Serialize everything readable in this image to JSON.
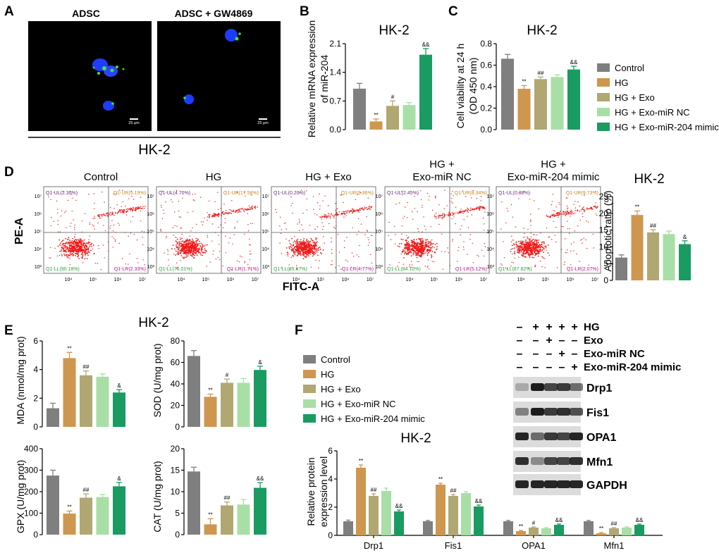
{
  "colors": {
    "control": "#7f7f7f",
    "hg": "#cf9650",
    "hg_exo": "#b0a772",
    "hg_exo_nc": "#a8dfa6",
    "hg_exo_mimic": "#1a9b62",
    "dots": "#ee1b1b",
    "quad_ul": "#6a2d8a",
    "quad_ur": "#c8881e",
    "quad_ll": "#2aa33a",
    "quad_lr": "#b5178a"
  },
  "groups": [
    "Control",
    "HG",
    "HG + Exo",
    "HG + Exo-miR NC",
    "HG + Exo-miR-204 mimic"
  ],
  "panelA": {
    "letter": "A",
    "labels": [
      "ADSC",
      "ADSC + GW4869"
    ],
    "scalebar": "25 μm",
    "cell_line": "HK-2"
  },
  "panelB": {
    "letter": "B",
    "chart_data": {
      "type": "bar",
      "title": "HK-2",
      "ylabel": "Relative mRNA expression of miR-204",
      "ylabel_lines": [
        "Relative mRNA expression",
        "of miR-204"
      ],
      "categories": [
        "Control",
        "HG",
        "HG + Exo",
        "HG + Exo-miR NC",
        "HG + Exo-miR-204 mimic"
      ],
      "values": [
        1.0,
        0.2,
        0.58,
        0.6,
        1.83
      ],
      "errors": [
        0.13,
        0.06,
        0.12,
        0.06,
        0.15
      ],
      "ylim": [
        0,
        2.1
      ],
      "yticks": [
        "0.0",
        "0.7",
        "1.4",
        "2.1"
      ],
      "yticks_val": [
        0,
        0.7,
        1.4,
        2.1
      ],
      "marks": [
        "",
        "**",
        "#",
        "",
        "&&"
      ]
    }
  },
  "panelC": {
    "letter": "C",
    "chart_data": {
      "type": "bar",
      "title": "HK-2",
      "ylabel": "Cell viability at 24 h (OD 450 nm)",
      "ylabel_lines": [
        "Cell viability at 24 h",
        "(OD 450 nm)"
      ],
      "categories": [
        "Control",
        "HG",
        "HG + Exo",
        "HG + Exo-miR NC",
        "HG + Exo-miR-204 mimic"
      ],
      "values": [
        0.66,
        0.38,
        0.47,
        0.49,
        0.56
      ],
      "errors": [
        0.04,
        0.03,
        0.02,
        0.02,
        0.03
      ],
      "ylim": [
        0,
        0.8
      ],
      "yticks": [
        "0.0",
        "0.2",
        "0.4",
        "0.6",
        "0.8"
      ],
      "yticks_val": [
        0,
        0.2,
        0.4,
        0.6,
        0.8
      ],
      "marks": [
        "",
        "**",
        "##",
        "",
        "&&"
      ]
    }
  },
  "legendTop": [
    "Control",
    "HG",
    "HG + Exo",
    "HG + Exo-miR NC",
    "HG + Exo-miR-204 mimic"
  ],
  "panelD": {
    "letter": "D",
    "xaxis": "FITC-A",
    "yaxis": "PE-A",
    "xticks": [
      "10⁴",
      "10⁵",
      "10⁶",
      "10⁷"
    ],
    "yticks": [
      "10⁷",
      "10⁶",
      "10⁵",
      "10⁴",
      "10³"
    ],
    "plots": [
      {
        "title": [
          "Control"
        ],
        "ul": "Q1-UL(2.30%)",
        "ur": "Q1-UR(5.19%)",
        "ll": "Q1-LL(90.18%)",
        "lr": "Q1-LR(2.33%)"
      },
      {
        "title": [
          "HG"
        ],
        "ul": "Q1-UL(4.70%)",
        "ur": "Q1-UR(17.58%)",
        "ll": "Q1-LL(76.01%)",
        "lr": "Q1-LR(1.71%)"
      },
      {
        "title": [
          "HG + Exo"
        ],
        "ul": "Q1-UL(0.20%)",
        "ur": "Q1-UR(9.36%)",
        "ll": "Q1-LL(85.67%)",
        "lr": "Q1-LR(4.77%)"
      },
      {
        "title": [
          "HG +",
          "Exo-miR NC"
        ],
        "ul": "Q1-UL(2.45%)",
        "ur": "Q1-UR(8.34%)",
        "ll": "Q1-LL(84.10%)",
        "lr": "Q1-LR(5.12%)"
      },
      {
        "title": [
          "HG +",
          "Exo-miR-204 mimic"
        ],
        "ul": "Q1-UL(0.38%)",
        "ur": "Q1-UR(9.73%)",
        "ll": "Q1-LL(87.82%)",
        "lr": "Q1-LR(2.07%)"
      }
    ],
    "chart_data": {
      "type": "bar",
      "title": "HK-2",
      "ylabel": "Apoptotic ratio (%)",
      "categories": [
        "Control",
        "HG",
        "HG + Exo",
        "HG + Exo-miR NC",
        "HG + Exo-miR-204 mimic"
      ],
      "values": [
        6.8,
        19.5,
        14.3,
        13.8,
        10.8
      ],
      "errors": [
        0.8,
        1.2,
        0.8,
        0.9,
        1.0
      ],
      "ylim": [
        0,
        25
      ],
      "yticks": [
        "0",
        "5",
        "10",
        "15",
        "20",
        "25"
      ],
      "yticks_val": [
        0,
        5,
        10,
        15,
        20,
        25
      ],
      "marks": [
        "",
        "**",
        "##",
        "",
        "&"
      ]
    }
  },
  "panelE": {
    "letter": "E",
    "title": "HK-2",
    "charts": [
      {
        "type": "bar",
        "ylabel": "MDA (nmol/mg prot)",
        "categories": [
          "Control",
          "HG",
          "HG + Exo",
          "HG + Exo-miR NC",
          "HG + Exo-miR-204 mimic"
        ],
        "values": [
          1.3,
          4.8,
          3.6,
          3.5,
          2.4
        ],
        "errors": [
          0.35,
          0.4,
          0.3,
          0.2,
          0.2
        ],
        "ylim": [
          0,
          6
        ],
        "yticks": [
          "0",
          "2",
          "4",
          "6"
        ],
        "yticks_val": [
          0,
          2,
          4,
          6
        ],
        "marks": [
          "",
          "**",
          "##",
          "",
          "&"
        ]
      },
      {
        "type": "bar",
        "ylabel": "SOD (U/mg prot)",
        "categories": [
          "Control",
          "HG",
          "HG + Exo",
          "HG + Exo-miR NC",
          "HG + Exo-miR-204 mimic"
        ],
        "values": [
          66,
          28,
          41,
          41,
          53
        ],
        "errors": [
          5,
          2.5,
          3.5,
          4,
          3.5
        ],
        "ylim": [
          0,
          80
        ],
        "yticks": [
          "0",
          "20",
          "40",
          "60",
          "80"
        ],
        "yticks_val": [
          0,
          20,
          40,
          60,
          80
        ],
        "marks": [
          "",
          "**",
          "#",
          "",
          "&"
        ]
      },
      {
        "type": "bar",
        "ylabel": "GPX (U/mg prot)",
        "categories": [
          "Control",
          "HG",
          "HG + Exo",
          "HG + Exo-miR NC",
          "HG + Exo-miR-204 mimic"
        ],
        "values": [
          275,
          98,
          172,
          175,
          225
        ],
        "errors": [
          25,
          12,
          18,
          12,
          18
        ],
        "ylim": [
          0,
          400
        ],
        "yticks": [
          "0",
          "100",
          "200",
          "300",
          "400"
        ],
        "yticks_val": [
          0,
          100,
          200,
          300,
          400
        ],
        "marks": [
          "",
          "**",
          "##",
          "",
          "&"
        ]
      },
      {
        "type": "bar",
        "ylabel": "CAT (U/mg prot)",
        "categories": [
          "Control",
          "HG",
          "HG + Exo",
          "HG + Exo-miR NC",
          "HG + Exo-miR-204 mimic"
        ],
        "values": [
          14.7,
          2.4,
          6.8,
          7.0,
          10.9
        ],
        "errors": [
          1.0,
          1.3,
          0.8,
          1.2,
          1.2
        ],
        "ylim": [
          0,
          20
        ],
        "yticks": [
          "0",
          "5",
          "10",
          "15",
          "20"
        ],
        "yticks_val": [
          0,
          5,
          10,
          15,
          20
        ],
        "marks": [
          "",
          "**",
          "##",
          "",
          "&&"
        ]
      }
    ]
  },
  "panelF": {
    "letter": "F",
    "legend": [
      "Control",
      "HG",
      "HG + Exo",
      "HG + Exo-miR NC",
      "HG + Exo-miR-204 mimic"
    ],
    "treatments": [
      {
        "name": "HG",
        "signs": [
          "–",
          "+",
          "+",
          "+",
          "+"
        ]
      },
      {
        "name": "Exo",
        "signs": [
          "–",
          "–",
          "+",
          "–",
          "–"
        ]
      },
      {
        "name": "Exo-miR NC",
        "signs": [
          "–",
          "–",
          "–",
          "+",
          "–"
        ]
      },
      {
        "name": "Exo-miR-204 mimic",
        "signs": [
          "–",
          "–",
          "–",
          "–",
          "+"
        ]
      }
    ],
    "blots": [
      "Drp1",
      "Fis1",
      "OPA1",
      "Mfn1",
      "GAPDH"
    ],
    "chart_data": {
      "type": "bar",
      "title": "HK-2",
      "ylabel": "Relative protein expression level",
      "ylabel_lines": [
        "Relative protein",
        "expression level"
      ],
      "categories": [
        "Drp1",
        "Fis1",
        "OPA1",
        "Mfn1"
      ],
      "series": [
        {
          "name": "Control",
          "values": [
            1.0,
            1.0,
            1.0,
            1.0
          ],
          "errors": [
            0.08,
            0.06,
            0.06,
            0.06
          ],
          "marks": [
            "",
            "",
            "",
            ""
          ]
        },
        {
          "name": "HG",
          "values": [
            4.8,
            3.6,
            0.3,
            0.15
          ],
          "errors": [
            0.2,
            0.1,
            0.05,
            0.05
          ],
          "marks": [
            "**",
            "**",
            "**",
            "**"
          ]
        },
        {
          "name": "HG + Exo",
          "values": [
            2.8,
            2.8,
            0.55,
            0.5
          ],
          "errors": [
            0.15,
            0.1,
            0.05,
            0.05
          ],
          "marks": [
            "##",
            "##",
            "#",
            "##"
          ]
        },
        {
          "name": "HG + Exo-miR NC",
          "values": [
            3.15,
            3.0,
            0.5,
            0.55
          ],
          "errors": [
            0.2,
            0.1,
            0.05,
            0.05
          ],
          "marks": [
            "",
            "",
            "",
            ""
          ]
        },
        {
          "name": "HG + Exo-miR-204 mimic",
          "values": [
            1.7,
            2.05,
            0.75,
            0.75
          ],
          "errors": [
            0.1,
            0.1,
            0.06,
            0.05
          ],
          "marks": [
            "&&",
            "&&",
            "&&",
            "&&"
          ]
        }
      ],
      "ylim": [
        0,
        6
      ],
      "yticks": [
        "0",
        "2",
        "4",
        "6"
      ],
      "yticks_val": [
        0,
        2,
        4,
        6
      ]
    }
  }
}
